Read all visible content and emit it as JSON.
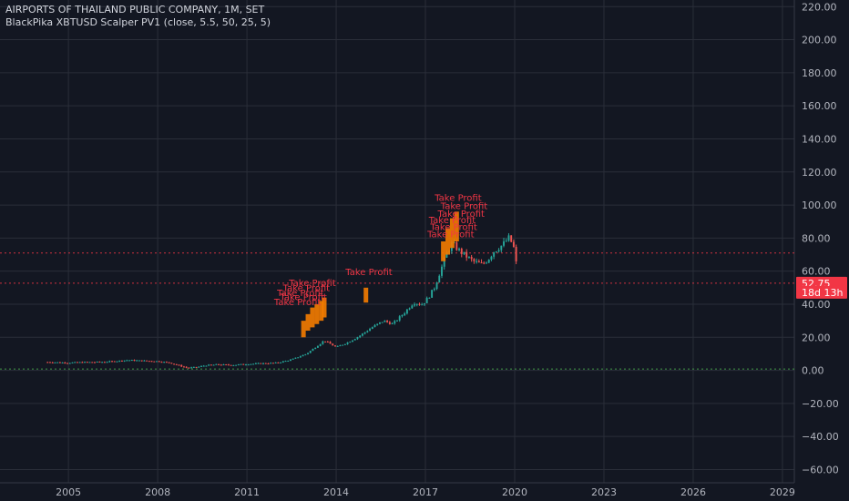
{
  "header": {
    "title": "AIRPORTS OF THAILAND PUBLIC COMPANY, 1M, SET",
    "indicator": "BlackPika XBTUSD Scalper PV1 (close, 5.5, 50, 25, 5)"
  },
  "colors": {
    "background": "#131722",
    "grid": "#2a2e39",
    "axis_text": "#b2b5be",
    "up": "#26a69a",
    "down": "#ef5350",
    "signal": "#f57c00",
    "annotation": "#f23645",
    "zero_line": "#4caf50",
    "level_line": "#f23645"
  },
  "chart_data": {
    "type": "candlestick",
    "title": "AIRPORTS OF THAILAND PUBLIC COMPANY, 1M, SET",
    "indicator": "BlackPika XBTUSD Scalper PV1 (close, 5.5, 50, 25, 5)",
    "x_axis": {
      "ticks": [
        "2005",
        "2008",
        "2011",
        "2014",
        "2017",
        "2020",
        "2023",
        "2026",
        "2029"
      ],
      "range": [
        2002.7,
        2029.4
      ]
    },
    "y_axis": {
      "ticks": [
        -60,
        -40,
        -20,
        0,
        20,
        40,
        60,
        80,
        100,
        120,
        140,
        160,
        180,
        200,
        220
      ],
      "tick_labels": [
        "−60.00",
        "−40.00",
        "−20.00",
        "0.00",
        "20.00",
        "40.00",
        "60.00",
        "80.00",
        "100.00",
        "120.00",
        "140.00",
        "160.00",
        "180.00",
        "200.00",
        "220.00"
      ],
      "range": [
        -68,
        224
      ]
    },
    "grid": true,
    "price_series": [
      {
        "x": 2004.3,
        "y": 5.0
      },
      {
        "x": 2005.0,
        "y": 4.6
      },
      {
        "x": 2005.5,
        "y": 4.9
      },
      {
        "x": 2006.0,
        "y": 5.0
      },
      {
        "x": 2006.5,
        "y": 5.4
      },
      {
        "x": 2007.0,
        "y": 6.2
      },
      {
        "x": 2007.5,
        "y": 5.8
      },
      {
        "x": 2008.0,
        "y": 5.5
      },
      {
        "x": 2008.4,
        "y": 4.6
      },
      {
        "x": 2008.8,
        "y": 2.5
      },
      {
        "x": 2009.0,
        "y": 1.5
      },
      {
        "x": 2009.3,
        "y": 1.8
      },
      {
        "x": 2009.6,
        "y": 3.0
      },
      {
        "x": 2010.0,
        "y": 3.5
      },
      {
        "x": 2010.5,
        "y": 3.2
      },
      {
        "x": 2011.0,
        "y": 3.8
      },
      {
        "x": 2011.5,
        "y": 4.2
      },
      {
        "x": 2012.0,
        "y": 4.5
      },
      {
        "x": 2012.5,
        "y": 6.5
      },
      {
        "x": 2013.0,
        "y": 10.0
      },
      {
        "x": 2013.3,
        "y": 14.0
      },
      {
        "x": 2013.6,
        "y": 18.0
      },
      {
        "x": 2013.9,
        "y": 15.0
      },
      {
        "x": 2014.0,
        "y": 14.0
      },
      {
        "x": 2014.4,
        "y": 17.0
      },
      {
        "x": 2014.8,
        "y": 21.0
      },
      {
        "x": 2015.2,
        "y": 26.0
      },
      {
        "x": 2015.6,
        "y": 30.0
      },
      {
        "x": 2015.9,
        "y": 28.0
      },
      {
        "x": 2016.3,
        "y": 35.0
      },
      {
        "x": 2016.6,
        "y": 41.0
      },
      {
        "x": 2016.9,
        "y": 40.0
      },
      {
        "x": 2017.1,
        "y": 44.0
      },
      {
        "x": 2017.3,
        "y": 50.0
      },
      {
        "x": 2017.5,
        "y": 60.0
      },
      {
        "x": 2017.7,
        "y": 70.0
      },
      {
        "x": 2017.9,
        "y": 77.0
      },
      {
        "x": 2018.1,
        "y": 73.0
      },
      {
        "x": 2018.3,
        "y": 70.0
      },
      {
        "x": 2018.6,
        "y": 66.0
      },
      {
        "x": 2018.9,
        "y": 64.0
      },
      {
        "x": 2019.1,
        "y": 67.0
      },
      {
        "x": 2019.3,
        "y": 72.0
      },
      {
        "x": 2019.6,
        "y": 76.0
      },
      {
        "x": 2019.8,
        "y": 80.0
      },
      {
        "x": 2019.95,
        "y": 76.0
      },
      {
        "x": 2020.05,
        "y": 65.0
      },
      {
        "x": 2020.1,
        "y": 52.75
      }
    ],
    "signal_bars": [
      {
        "x": 2012.9,
        "low": 20,
        "high": 30
      },
      {
        "x": 2013.05,
        "low": 24,
        "high": 34
      },
      {
        "x": 2013.2,
        "low": 26,
        "high": 38
      },
      {
        "x": 2013.35,
        "low": 28,
        "high": 40
      },
      {
        "x": 2013.5,
        "low": 30,
        "high": 42
      },
      {
        "x": 2013.6,
        "low": 32,
        "high": 44
      },
      {
        "x": 2015.0,
        "low": 41,
        "high": 50
      },
      {
        "x": 2017.6,
        "low": 66,
        "high": 78
      },
      {
        "x": 2017.75,
        "low": 70,
        "high": 86
      },
      {
        "x": 2017.9,
        "low": 74,
        "high": 92
      },
      {
        "x": 2018.05,
        "low": 78,
        "high": 96
      }
    ],
    "annotations": [
      {
        "x": 2015.1,
        "y": 57.5,
        "text": "Take Profit"
      },
      {
        "x": 2018.1,
        "y": 102.5,
        "text": "Take Profit"
      },
      {
        "x": 2018.3,
        "y": 97.5,
        "text": "Take Profit"
      },
      {
        "x": 2018.2,
        "y": 93.0,
        "text": "Take Profit"
      },
      {
        "x": 2017.9,
        "y": 89.0,
        "text": "Take Profit"
      },
      {
        "x": 2017.95,
        "y": 85.0,
        "text": "Take Profit"
      },
      {
        "x": 2017.85,
        "y": 80.5,
        "text": "Take Profit"
      },
      {
        "x": 2013.2,
        "y": 51.0,
        "text": "Take Profit"
      },
      {
        "x": 2013.0,
        "y": 48.0,
        "text": "Take Profit"
      },
      {
        "x": 2012.8,
        "y": 45.0,
        "text": "Take Profit"
      },
      {
        "x": 2012.9,
        "y": 42.5,
        "text": "Take Profit"
      },
      {
        "x": 2012.7,
        "y": 39.5,
        "text": "Take Profit"
      }
    ],
    "horizontal_lines": [
      {
        "y": 71.0,
        "color": "#f23645",
        "style": "dotted"
      },
      {
        "y": 52.75,
        "color": "#f23645",
        "style": "dotted"
      },
      {
        "y": 0.8,
        "color": "#4caf50",
        "style": "dotted"
      }
    ],
    "price_labels": [
      {
        "text": "52.75",
        "color": "#f23645",
        "y": 52.75
      },
      {
        "text": "18d 13h",
        "color": "#f23645",
        "y": 47.2
      }
    ]
  }
}
